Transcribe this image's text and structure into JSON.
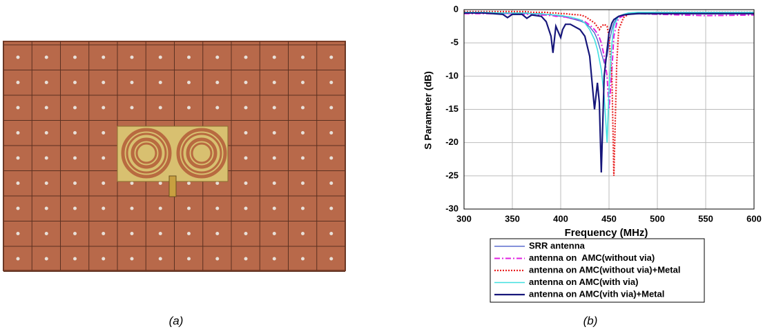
{
  "captions": [
    "(a)",
    "(b)"
  ],
  "chart_data": {
    "type": "line",
    "xlabel": "Frequency (MHz)",
    "ylabel": "S Parameter (dB)",
    "x": [
      300,
      320,
      340,
      345,
      350,
      360,
      365,
      370,
      380,
      385,
      390,
      392,
      395,
      400,
      402,
      405,
      410,
      420,
      425,
      430,
      435,
      438,
      440,
      442,
      445,
      448,
      450,
      453,
      455,
      458,
      460,
      465,
      470,
      480,
      500,
      550,
      600
    ],
    "xlim": [
      300,
      600
    ],
    "xticks": [
      300,
      350,
      400,
      450,
      500,
      550,
      600
    ],
    "ylim": [
      -30,
      0
    ],
    "yticks": [
      0,
      -5,
      -10,
      -15,
      -20,
      -25,
      -30
    ],
    "grid": true,
    "legend": "bottom",
    "series": [
      {
        "name": "SRR antenna",
        "color": "#3a4fc4",
        "width": 1.2,
        "dash": "none",
        "values": [
          -0.5,
          -0.5,
          -0.6,
          -0.6,
          -0.6,
          -0.6,
          -0.6,
          -0.6,
          -0.7,
          -0.7,
          -0.8,
          -0.8,
          -0.9,
          -1,
          -1,
          -1.1,
          -1.3,
          -1.7,
          -2,
          -2.6,
          -3.5,
          -4.5,
          -5.5,
          -6.5,
          -8,
          -7,
          -5,
          -3,
          -2,
          -1.3,
          -1,
          -0.8,
          -0.6,
          -0.5,
          -0.5,
          -0.5,
          -0.6
        ]
      },
      {
        "name": "antenna on  AMC(without via)",
        "color": "#e020e0",
        "width": 2,
        "dash": "8 3 2 3",
        "values": [
          -0.6,
          -0.6,
          -0.6,
          -0.6,
          -0.6,
          -0.7,
          -0.7,
          -0.7,
          -0.8,
          -0.8,
          -0.9,
          -0.9,
          -1,
          -1,
          -1.1,
          -1.1,
          -1.3,
          -1.5,
          -1.8,
          -2.3,
          -3,
          -3.6,
          -4.2,
          -5,
          -7,
          -10,
          -15,
          -9,
          -4,
          -2,
          -1.3,
          -0.9,
          -0.7,
          -0.6,
          -0.7,
          -0.9,
          -0.8
        ]
      },
      {
        "name": "antenna on AMC(without via)+Metal",
        "color": "#e82020",
        "width": 2.2,
        "dash": "2 2",
        "values": [
          -0.3,
          -0.3,
          -0.3,
          -0.3,
          -0.3,
          -0.3,
          -0.3,
          -0.4,
          -0.4,
          -0.4,
          -0.5,
          -0.5,
          -0.5,
          -0.6,
          -0.6,
          -0.6,
          -0.7,
          -0.8,
          -1,
          -1.5,
          -2,
          -2.6,
          -3,
          -2.5,
          -2.2,
          -2.5,
          -4,
          -10,
          -25,
          -8,
          -3,
          -1.2,
          -0.7,
          -0.5,
          -0.4,
          -0.4,
          -0.4
        ]
      },
      {
        "name": "antenna on AMC(with via)",
        "color": "#40e0e0",
        "width": 1.6,
        "dash": "none",
        "values": [
          -0.4,
          -0.4,
          -0.5,
          -0.5,
          -0.5,
          -0.5,
          -0.5,
          -0.6,
          -0.6,
          -0.7,
          -0.7,
          -0.8,
          -0.8,
          -0.9,
          -0.9,
          -1,
          -1.1,
          -1.5,
          -2,
          -3,
          -4.5,
          -6,
          -7.5,
          -9,
          -13,
          -20,
          -12,
          -5,
          -2.5,
          -1.5,
          -1,
          -0.7,
          -0.5,
          -0.4,
          -0.4,
          -0.4,
          -0.4
        ]
      },
      {
        "name": "antenna on AMC(vith via)+Metal",
        "color": "#16167a",
        "width": 2.2,
        "dash": "none",
        "values": [
          -0.5,
          -0.5,
          -0.7,
          -1.2,
          -0.7,
          -0.7,
          -1.3,
          -0.8,
          -1,
          -1.8,
          -4,
          -6.5,
          -2.5,
          -4.2,
          -3,
          -2.2,
          -2.2,
          -3,
          -4,
          -7,
          -15,
          -11,
          -14,
          -24.5,
          -10,
          -6,
          -3.5,
          -2,
          -1.5,
          -1.2,
          -1,
          -0.8,
          -0.7,
          -0.6,
          -0.6,
          -0.6,
          -0.6
        ]
      }
    ]
  }
}
